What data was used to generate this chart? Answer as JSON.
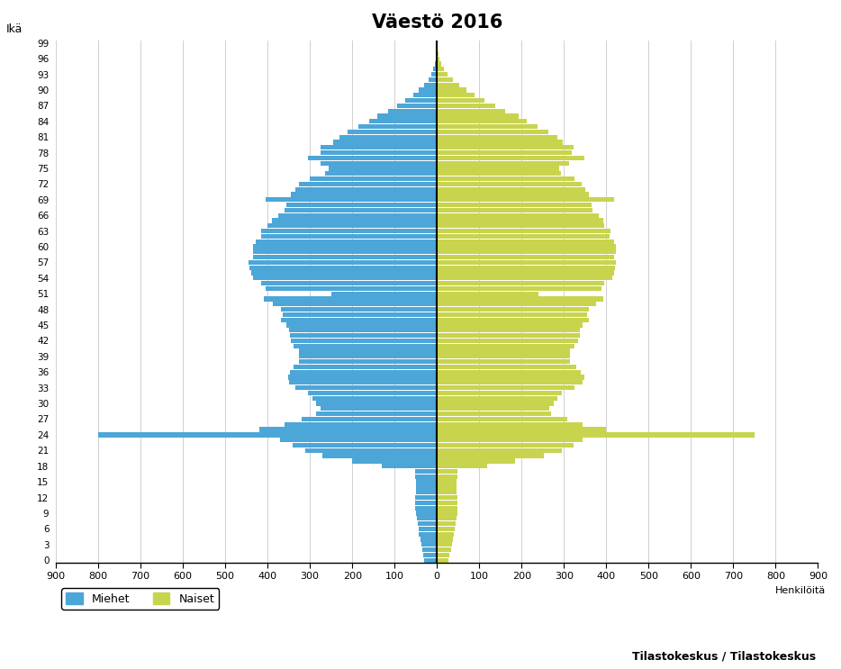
{
  "title": "Väestö 2016",
  "ylabel_left": "Ikä",
  "xlabel_right": "Henkilöitä",
  "legend_male": "Miehet",
  "legend_female": "Naiset",
  "source": "Tilastokeskus / Tilastokeskus",
  "male_color": "#4da6d8",
  "female_color": "#c8d44e",
  "xlim": 900,
  "ages": [
    0,
    1,
    2,
    3,
    4,
    5,
    6,
    7,
    8,
    9,
    10,
    11,
    12,
    13,
    14,
    15,
    16,
    17,
    18,
    19,
    20,
    21,
    22,
    23,
    24,
    25,
    26,
    27,
    28,
    29,
    30,
    31,
    32,
    33,
    34,
    35,
    36,
    37,
    38,
    39,
    40,
    41,
    42,
    43,
    44,
    45,
    46,
    47,
    48,
    49,
    50,
    51,
    52,
    53,
    54,
    55,
    56,
    57,
    58,
    59,
    60,
    61,
    62,
    63,
    64,
    65,
    66,
    67,
    68,
    69,
    70,
    71,
    72,
    73,
    74,
    75,
    76,
    77,
    78,
    79,
    80,
    81,
    82,
    83,
    84,
    85,
    86,
    87,
    88,
    89,
    90,
    91,
    92,
    93,
    94,
    95,
    96,
    97,
    98,
    99
  ],
  "males": [
    30,
    32,
    35,
    37,
    39,
    42,
    44,
    46,
    48,
    50,
    52,
    52,
    51,
    50,
    50,
    50,
    51,
    52,
    130,
    200,
    270,
    310,
    340,
    370,
    800,
    420,
    360,
    320,
    285,
    275,
    285,
    295,
    305,
    335,
    350,
    352,
    348,
    338,
    325,
    325,
    325,
    338,
    345,
    348,
    350,
    355,
    368,
    365,
    368,
    388,
    408,
    250,
    405,
    415,
    435,
    438,
    442,
    445,
    435,
    435,
    435,
    428,
    415,
    415,
    400,
    390,
    375,
    360,
    355,
    405,
    345,
    335,
    325,
    300,
    265,
    255,
    275,
    305,
    275,
    275,
    245,
    230,
    210,
    185,
    160,
    140,
    115,
    95,
    75,
    55,
    42,
    30,
    20,
    13,
    8,
    5,
    3,
    2,
    1,
    1
  ],
  "females": [
    28,
    30,
    33,
    35,
    37,
    40,
    42,
    44,
    46,
    48,
    49,
    49,
    48,
    47,
    47,
    47,
    48,
    49,
    118,
    185,
    252,
    295,
    322,
    345,
    750,
    400,
    345,
    308,
    270,
    265,
    275,
    285,
    295,
    325,
    345,
    348,
    340,
    330,
    315,
    315,
    315,
    325,
    333,
    337,
    338,
    345,
    358,
    355,
    358,
    375,
    392,
    240,
    388,
    396,
    415,
    418,
    420,
    422,
    418,
    422,
    422,
    418,
    408,
    410,
    396,
    393,
    382,
    368,
    365,
    418,
    358,
    350,
    342,
    325,
    293,
    288,
    312,
    348,
    318,
    322,
    298,
    284,
    264,
    238,
    212,
    192,
    162,
    138,
    113,
    88,
    70,
    52,
    38,
    26,
    16,
    10,
    6,
    3,
    2,
    1
  ]
}
